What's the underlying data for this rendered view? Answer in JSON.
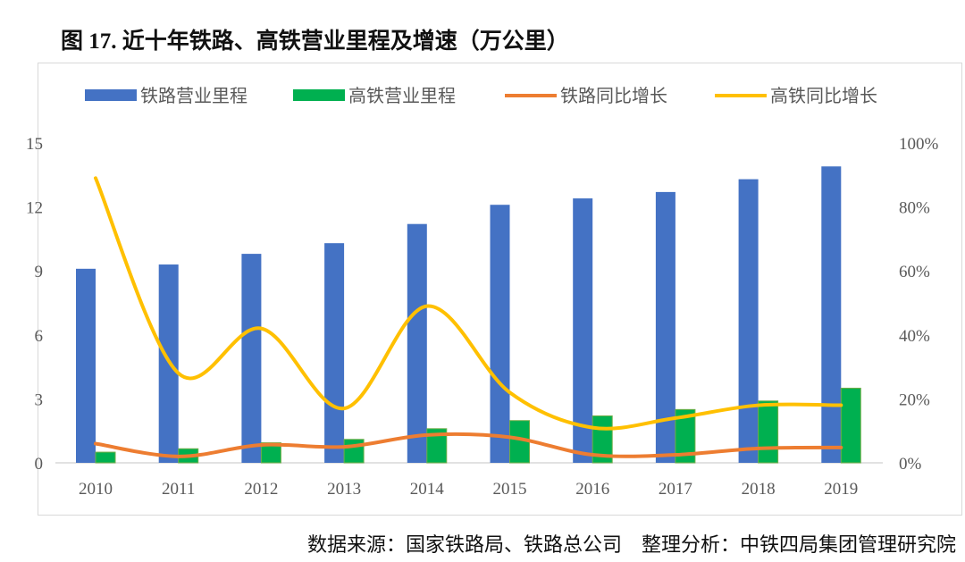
{
  "title": "图 17. 近十年铁路、高铁营业里程及增速（万公里）",
  "footer": "数据来源：国家铁路局、铁路总公司    整理分析：中铁四局集团管理研究院",
  "chart_data": {
    "type": "bar+line",
    "title": "图 17. 近十年铁路、高铁营业里程及增速（万公里）",
    "categories": [
      "2010",
      "2011",
      "2012",
      "2013",
      "2014",
      "2015",
      "2016",
      "2017",
      "2018",
      "2019"
    ],
    "y_left": {
      "range": [
        0,
        15
      ],
      "ticks": [
        "0",
        "3",
        "6",
        "9",
        "12",
        "15"
      ]
    },
    "y_right": {
      "range": [
        0,
        100
      ],
      "ticks": [
        "0%",
        "20%",
        "40%",
        "60%",
        "80%",
        "100%"
      ]
    },
    "grid": false,
    "legend_position": "top",
    "series": [
      {
        "name": "铁路营业里程",
        "kind": "bar",
        "axis": "left",
        "color": "#4472C4",
        "values": [
          9.1,
          9.3,
          9.8,
          10.3,
          11.2,
          12.1,
          12.4,
          12.7,
          13.3,
          13.9
        ]
      },
      {
        "name": "高铁营业里程",
        "kind": "bar",
        "axis": "left",
        "color": "#00B050",
        "values": [
          0.5,
          0.66,
          0.94,
          1.1,
          1.6,
          1.98,
          2.2,
          2.5,
          2.9,
          3.5
        ]
      },
      {
        "name": "铁路同比增长",
        "kind": "line",
        "axis": "right",
        "color": "#ED7D31",
        "values": [
          6,
          2,
          5.6,
          5,
          8.7,
          8,
          2.5,
          2.5,
          4.5,
          4.8
        ]
      },
      {
        "name": "高铁同比增长",
        "kind": "line",
        "axis": "right",
        "color": "#FFC000",
        "values": [
          89,
          28,
          42,
          17,
          49,
          22,
          11,
          14,
          18,
          18
        ]
      }
    ]
  }
}
